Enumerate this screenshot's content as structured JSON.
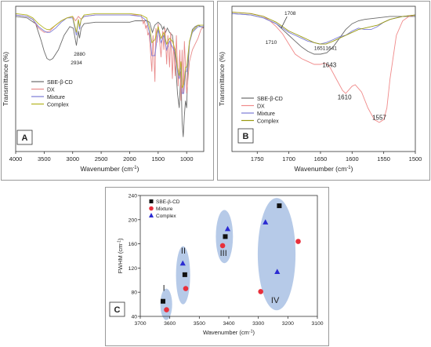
{
  "chart_data": [
    {
      "type": "line",
      "panel_label": "A",
      "xlabel": "Wavenumber (cm",
      "xlabel_sup": "-1",
      "xlabel_close": ")",
      "ylabel": "Transmittance (%)",
      "xlim": [
        4000,
        700
      ],
      "ylim": [
        0,
        100
      ],
      "x_reversed": true,
      "xticks": [
        4000,
        3500,
        3000,
        2500,
        2000,
        1500,
        1000
      ],
      "legend_position": "bottom-left",
      "annotations": [
        {
          "text": "2934",
          "x": 2934,
          "y": 60
        },
        {
          "text": "2880",
          "x": 2880,
          "y": 66
        }
      ],
      "series": [
        {
          "name": "SBE-β-CD",
          "color": "#6b6b6b",
          "x": [
            4000,
            3800,
            3650,
            3550,
            3500,
            3450,
            3400,
            3350,
            3250,
            3150,
            3050,
            2990,
            2934,
            2900,
            2880,
            2850,
            2800,
            2600,
            2400,
            2200,
            2100,
            2000,
            1900,
            1800,
            1700,
            1650,
            1600,
            1560,
            1500,
            1450,
            1420,
            1400,
            1370,
            1340,
            1300,
            1250,
            1200,
            1160,
            1130,
            1100,
            1080,
            1060,
            1040,
            1020,
            1000,
            980,
            950,
            900,
            850,
            800,
            750,
            700
          ],
          "y": [
            93,
            92,
            88,
            76,
            69,
            64,
            63,
            64,
            70,
            80,
            86,
            85,
            73,
            83,
            78,
            85,
            88,
            89,
            89,
            89,
            89,
            89,
            90,
            90,
            90,
            89,
            82,
            87,
            89,
            87,
            84,
            86,
            82,
            85,
            82,
            80,
            65,
            40,
            30,
            55,
            20,
            10,
            25,
            35,
            30,
            55,
            75,
            84,
            86,
            87,
            86,
            85
          ]
        },
        {
          "name": "DX",
          "color": "#e88a8a",
          "x": [
            4000,
            3800,
            3700,
            3600,
            3500,
            3400,
            3300,
            3200,
            3100,
            3000,
            2950,
            2900,
            2850,
            2800,
            2600,
            2400,
            2200,
            2000,
            1800,
            1760,
            1740,
            1720,
            1700,
            1680,
            1660,
            1643,
            1610,
            1590,
            1557,
            1540,
            1520,
            1500,
            1450,
            1420,
            1400,
            1380,
            1350,
            1330,
            1300,
            1280,
            1250,
            1230,
            1200,
            1180,
            1150,
            1120,
            1100,
            1080,
            1060,
            1040,
            1000,
            950,
            900,
            850,
            800,
            750,
            700
          ],
          "y": [
            94,
            93,
            91,
            85,
            82,
            83,
            87,
            90,
            92,
            93,
            90,
            93,
            91,
            93,
            94,
            94,
            94,
            94,
            94,
            88,
            90,
            85,
            87,
            80,
            82,
            74,
            55,
            80,
            48,
            85,
            75,
            88,
            65,
            83,
            70,
            85,
            60,
            80,
            58,
            82,
            50,
            75,
            52,
            80,
            45,
            70,
            35,
            70,
            40,
            76,
            40,
            62,
            70,
            74,
            78,
            84,
            86
          ]
        },
        {
          "name": "Mixture",
          "color": "#7b7bd6",
          "x": [
            4000,
            3800,
            3700,
            3600,
            3500,
            3450,
            3400,
            3300,
            3200,
            3100,
            3000,
            2934,
            2900,
            2880,
            2850,
            2800,
            2600,
            2400,
            2200,
            2000,
            1800,
            1700,
            1643,
            1610,
            1557,
            1500,
            1450,
            1400,
            1350,
            1300,
            1250,
            1200,
            1160,
            1130,
            1100,
            1080,
            1050,
            1020,
            1000,
            950,
            900,
            850,
            800,
            750,
            700
          ],
          "y": [
            94,
            93,
            91,
            86,
            83,
            82,
            82,
            85,
            89,
            92,
            92,
            80,
            91,
            84,
            91,
            93,
            94,
            94,
            94,
            94,
            93,
            90,
            80,
            66,
            66,
            84,
            75,
            80,
            70,
            76,
            72,
            68,
            55,
            50,
            60,
            40,
            40,
            55,
            55,
            75,
            82,
            84,
            86,
            86,
            86
          ],
          "clip": [
            4000,
            2800,
            1900,
            700
          ]
        },
        {
          "name": "Complex",
          "color": "#b3b320",
          "x": [
            4000,
            3800,
            3700,
            3600,
            3500,
            3450,
            3400,
            3300,
            3200,
            3100,
            3000,
            2934,
            2900,
            2880,
            2850,
            2800,
            2600,
            2400,
            2200,
            2000,
            1800,
            1700,
            1643,
            1610,
            1557,
            1500,
            1450,
            1400,
            1350,
            1300,
            1250,
            1200,
            1160,
            1130,
            1100,
            1080,
            1050,
            1020,
            1000,
            950,
            900,
            850,
            800,
            750,
            700
          ],
          "y": [
            95,
            94,
            92,
            88,
            85,
            84,
            84,
            87,
            90,
            92,
            93,
            82,
            91,
            86,
            91,
            94,
            95,
            95,
            95,
            95,
            94,
            92,
            84,
            75,
            77,
            86,
            78,
            82,
            74,
            78,
            76,
            70,
            58,
            52,
            62,
            44,
            46,
            58,
            58,
            76,
            83,
            85,
            87,
            87,
            87
          ],
          "clip": [
            4000,
            2800,
            1900,
            700
          ]
        }
      ]
    },
    {
      "type": "line",
      "panel_label": "B",
      "xlabel": "Wavenumber (cm",
      "xlabel_sup": "-1",
      "xlabel_close": ")",
      "ylabel": "Transmittance (%)",
      "xlim": [
        1790,
        1500
      ],
      "ylim": [
        0,
        100
      ],
      "x_reversed": true,
      "xticks": [
        1750,
        1700,
        1650,
        1600,
        1550,
        1500
      ],
      "legend_position": "bottom-left",
      "annotations": [
        {
          "text": "1708",
          "x": 1698,
          "y": 94,
          "arrow_to": [
            1712,
            85
          ]
        },
        {
          "text": "1710",
          "x": 1728,
          "y": 74
        },
        {
          "text": "1651",
          "x": 1651,
          "y": 70
        },
        {
          "text": "1641",
          "x": 1633,
          "y": 70
        },
        {
          "text": "1643",
          "x": 1636,
          "y": 58
        },
        {
          "text": "1610",
          "x": 1612,
          "y": 36
        },
        {
          "text": "1557",
          "x": 1557,
          "y": 22
        }
      ],
      "series": [
        {
          "name": "SBE-β-CD",
          "color": "#6b6b6b",
          "x": [
            1790,
            1760,
            1740,
            1720,
            1710,
            1700,
            1690,
            1680,
            1670,
            1660,
            1650,
            1640,
            1630,
            1620,
            1610,
            1600,
            1590,
            1580,
            1560,
            1540,
            1520,
            1500
          ],
          "y": [
            95,
            94,
            92,
            88,
            84,
            80,
            76,
            72,
            69,
            67,
            67,
            68,
            72,
            78,
            84,
            88,
            90,
            91,
            92,
            93,
            93,
            93
          ],
          "clip": [
            1790,
            1500
          ]
        },
        {
          "name": "DX",
          "color": "#f08a8a",
          "x": [
            1790,
            1760,
            1740,
            1730,
            1720,
            1710,
            1700,
            1690,
            1680,
            1670,
            1660,
            1650,
            1643,
            1635,
            1625,
            1615,
            1610,
            1600,
            1595,
            1585,
            1575,
            1565,
            1557,
            1550,
            1545,
            1540,
            1530,
            1520,
            1510,
            1500
          ],
          "y": [
            96,
            95,
            93,
            90,
            86,
            81,
            74,
            67,
            64,
            62,
            60,
            60,
            61,
            58,
            50,
            42,
            40,
            45,
            46,
            41,
            30,
            22,
            20,
            22,
            30,
            50,
            80,
            90,
            93,
            94
          ]
        },
        {
          "name": "Mixture",
          "color": "#7b7bd6",
          "x": [
            1790,
            1760,
            1740,
            1720,
            1710,
            1700,
            1690,
            1680,
            1670,
            1660,
            1651,
            1641,
            1630,
            1620,
            1610,
            1600,
            1590,
            1580,
            1570,
            1560,
            1550,
            1540,
            1520,
            1500
          ],
          "y": [
            95,
            94,
            92,
            88,
            85,
            82,
            80,
            78,
            76,
            75,
            74,
            75,
            77,
            79,
            80,
            83,
            85,
            84,
            84,
            86,
            89,
            91,
            93,
            94
          ]
        },
        {
          "name": "Complex",
          "color": "#9a9a10",
          "x": [
            1790,
            1760,
            1740,
            1720,
            1710,
            1700,
            1690,
            1680,
            1670,
            1660,
            1651,
            1641,
            1630,
            1620,
            1610,
            1600,
            1590,
            1580,
            1570,
            1560,
            1550,
            1540,
            1520,
            1500
          ],
          "y": [
            96,
            95,
            93,
            89,
            86,
            83,
            81,
            79,
            77,
            75,
            74,
            74,
            76,
            78,
            80,
            82,
            84,
            85,
            86,
            87,
            89,
            91,
            93,
            94
          ]
        }
      ]
    },
    {
      "type": "scatter",
      "panel_label": "C",
      "xlabel": "Wavenumber (cm",
      "xlabel_sup": "-1",
      "xlabel_close": ")",
      "ylabel": "FWHM (cm",
      "ylabel_sup": "-1",
      "ylabel_close": ")",
      "xlim": [
        3700,
        3100
      ],
      "ylim": [
        40,
        240
      ],
      "x_reversed": true,
      "xticks": [
        3700,
        3600,
        3500,
        3400,
        3300,
        3200,
        3100
      ],
      "yticks": [
        40,
        80,
        120,
        160,
        200,
        240
      ],
      "legend_position": "top-left",
      "groups": [
        {
          "label": "I",
          "cx": 3612,
          "cy": 60,
          "rx": 20,
          "ry": 26,
          "lx": 3620,
          "ly": 82
        },
        {
          "label": "II",
          "cx": 3555,
          "cy": 108,
          "rx": 24,
          "ry": 48,
          "lx": 3554,
          "ly": 144
        },
        {
          "label": "III",
          "cx": 3415,
          "cy": 172,
          "rx": 29,
          "ry": 44,
          "lx": 3418,
          "ly": 140
        },
        {
          "label": "IV",
          "cx": 3238,
          "cy": 143,
          "rx": 64,
          "ry": 93,
          "lx": 3243,
          "ly": 62
        }
      ],
      "series": [
        {
          "name": "SBE-β-CD",
          "color": "#111111",
          "marker": "square",
          "x": [
            3623,
            3549,
            3412,
            3229
          ],
          "y": [
            65,
            109,
            172,
            223
          ]
        },
        {
          "name": "Mixture",
          "color": "#e8303c",
          "marker": "circle",
          "x": [
            3611,
            3546,
            3421,
            3292,
            3165
          ],
          "y": [
            51,
            86,
            157,
            81,
            164
          ]
        },
        {
          "name": "Complex",
          "color": "#2b2bd2",
          "marker": "triangle",
          "x": [
            3556,
            3404,
            3276,
            3236
          ],
          "y": [
            128,
            185,
            196,
            114
          ]
        }
      ]
    }
  ]
}
